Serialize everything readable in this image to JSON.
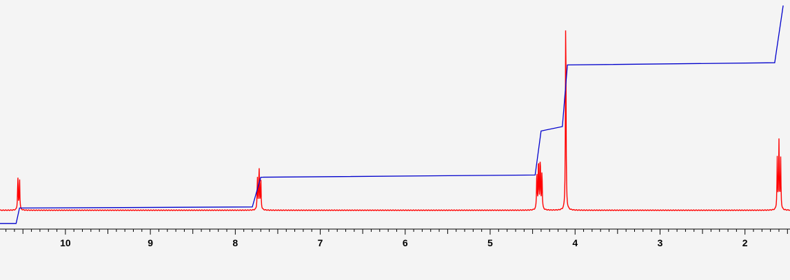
{
  "chart_data": {
    "type": "line",
    "xlabel": "",
    "ylabel": "",
    "xlim": [
      10.77,
      1.47
    ],
    "ylim": [
      0,
      1
    ],
    "x_axis_reversed": true,
    "grid": false,
    "x_ticks": [
      10,
      9,
      8,
      7,
      6,
      5,
      4,
      3,
      2
    ],
    "x_tick_labels": [
      "10",
      "9",
      "8",
      "7",
      "6",
      "5",
      "4",
      "3",
      "2"
    ],
    "minor_tick_step": 0.1,
    "colors": {
      "spectrum": "#ff0000",
      "integral": "#0000cc",
      "axis": "#000000",
      "background": "#f4f4f4"
    },
    "series": [
      {
        "role": "spectrum",
        "baseline": 0.07,
        "peaks": [
          {
            "center": 10.55,
            "height": 0.22,
            "lines": [
              10.56,
              10.54
            ]
          },
          {
            "center": 7.72,
            "height": 0.27,
            "lines": [
              7.74,
              7.72,
              7.7
            ]
          },
          {
            "center": 4.42,
            "height": 0.31,
            "lines": [
              4.45,
              4.43,
              4.41,
              4.39
            ]
          },
          {
            "center": 4.11,
            "height": 1.0,
            "lines": [
              4.11
            ]
          },
          {
            "center": 1.6,
            "height": 0.38,
            "lines": [
              1.62,
              1.6,
              1.58
            ]
          }
        ]
      },
      {
        "role": "integral",
        "points": [
          [
            10.77,
            0.01
          ],
          [
            10.58,
            0.01
          ],
          [
            10.54,
            0.08
          ],
          [
            7.8,
            0.085
          ],
          [
            7.7,
            0.22
          ],
          [
            4.47,
            0.23
          ],
          [
            4.4,
            0.43
          ],
          [
            4.15,
            0.45
          ],
          [
            4.09,
            0.73
          ],
          [
            1.65,
            0.74
          ],
          [
            1.55,
            1.0
          ]
        ]
      }
    ]
  }
}
